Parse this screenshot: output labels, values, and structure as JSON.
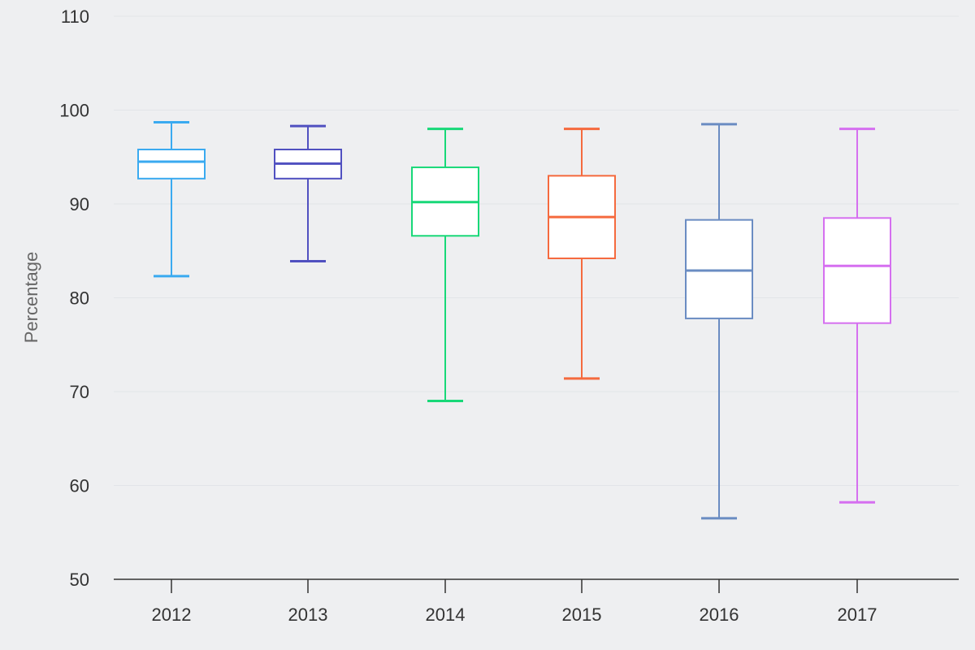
{
  "chart_data": {
    "type": "box",
    "title": "",
    "xlabel": "",
    "ylabel": "Percentage",
    "ylim": [
      50,
      110
    ],
    "yticks": [
      50,
      60,
      70,
      80,
      90,
      100,
      110
    ],
    "grid": true,
    "legend": "none",
    "categories": [
      "2012",
      "2013",
      "2014",
      "2015",
      "2016",
      "2017"
    ],
    "boxes": [
      {
        "category": "2012",
        "min": 82.3,
        "q1": 92.7,
        "median": 94.5,
        "q3": 95.8,
        "max": 98.7,
        "color": "#3aaaf0"
      },
      {
        "category": "2013",
        "min": 83.9,
        "q1": 92.7,
        "median": 94.3,
        "q3": 95.8,
        "max": 98.3,
        "color": "#5050c0"
      },
      {
        "category": "2014",
        "min": 69.0,
        "q1": 86.6,
        "median": 90.2,
        "q3": 93.9,
        "max": 98.0,
        "color": "#18d878"
      },
      {
        "category": "2015",
        "min": 71.4,
        "q1": 84.2,
        "median": 88.6,
        "q3": 93.0,
        "max": 98.0,
        "color": "#f56a3e"
      },
      {
        "category": "2016",
        "min": 56.5,
        "q1": 77.8,
        "median": 82.9,
        "q3": 88.3,
        "max": 98.5,
        "color": "#6a8cc2"
      },
      {
        "category": "2017",
        "min": 58.2,
        "q1": 77.3,
        "median": 83.4,
        "q3": 88.5,
        "max": 98.0,
        "color": "#d56ff0"
      }
    ]
  },
  "colors": {
    "background": "#eeeff1",
    "grid": "#e2e4e8",
    "axis": "#333333",
    "box_fill": "#ffffff"
  }
}
